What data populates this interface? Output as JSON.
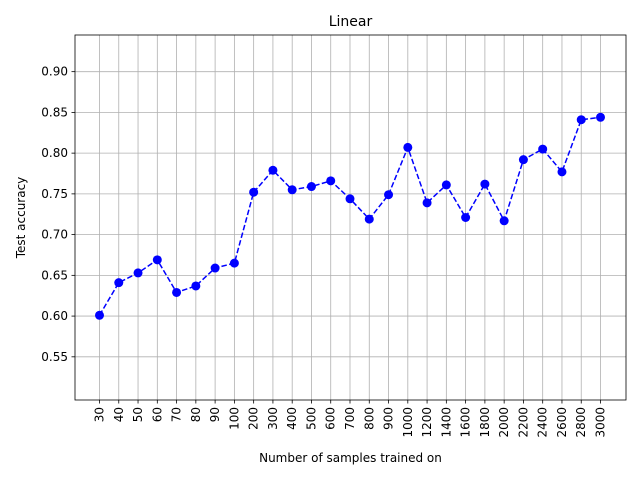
{
  "chart_data": {
    "type": "line",
    "title": "Linear",
    "xlabel": "Number of samples trained on",
    "ylabel": "Test accuracy",
    "categories": [
      "30",
      "40",
      "50",
      "60",
      "70",
      "80",
      "90",
      "100",
      "200",
      "300",
      "400",
      "500",
      "600",
      "700",
      "800",
      "900",
      "1000",
      "1200",
      "1400",
      "1600",
      "1800",
      "2000",
      "2200",
      "2400",
      "2600",
      "2800",
      "3000"
    ],
    "yticks": [
      "0.55",
      "0.60",
      "0.65",
      "0.70",
      "0.75",
      "0.80",
      "0.85",
      "0.90"
    ],
    "ylim": [
      0.497,
      0.945
    ],
    "grid": true,
    "series": [
      {
        "values": [
          0.601,
          0.641,
          0.653,
          0.669,
          0.629,
          0.637,
          0.659,
          0.665,
          0.752,
          0.779,
          0.755,
          0.759,
          0.766,
          0.744,
          0.719,
          0.749,
          0.807,
          0.739,
          0.761,
          0.721,
          0.762,
          0.717,
          0.792,
          0.805,
          0.777,
          0.841,
          0.844
        ],
        "color": "#0000ff",
        "line_style": "dashed",
        "marker": "circle"
      }
    ]
  }
}
